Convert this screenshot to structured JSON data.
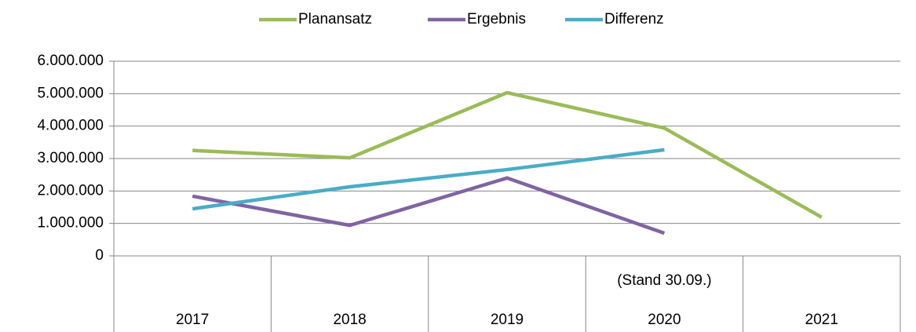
{
  "chart_data": {
    "type": "line",
    "categories": [
      "2017",
      "2018",
      "2019",
      "2020",
      "2021"
    ],
    "annotation": "(Stand 30.09.)",
    "series": [
      {
        "name": "Planansatz",
        "color": "#9bbb59",
        "values": [
          3250000,
          3020000,
          5030000,
          3940000,
          1190000
        ]
      },
      {
        "name": "Ergebnis",
        "color": "#8064a2",
        "values": [
          1840000,
          940000,
          2400000,
          700000,
          null
        ]
      },
      {
        "name": "Differenz",
        "color": "#4bacc6",
        "values": [
          1450000,
          2130000,
          2660000,
          3270000,
          null
        ]
      }
    ],
    "ylim": [
      0,
      6000000
    ],
    "yticks": [
      0,
      {
        "value": 1000000,
        "label": "1.000.000"
      },
      {
        "value": 2000000,
        "label": "2.000.000"
      },
      {
        "value": 3000000,
        "label": "3.000.000"
      },
      {
        "value": 4000000,
        "label": "4.000.000"
      },
      {
        "value": 5000000,
        "label": "5.000.000"
      },
      {
        "value": 6000000,
        "label": "6.000.000"
      }
    ],
    "grid": true,
    "legend": "top"
  }
}
